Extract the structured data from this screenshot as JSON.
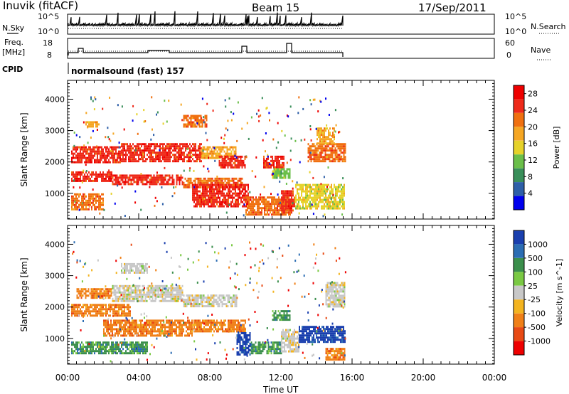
{
  "header": {
    "site": "Inuvik (fitACF)",
    "beam": "Beam 15",
    "date": "17/Sep/2011"
  },
  "strips": {
    "nsky_label": "N.Sky",
    "nsky_ticks": [
      "10^5",
      "10^0"
    ],
    "nsearch_label": "N.Search",
    "freq_label_1": "Freq.",
    "freq_label_2": "[MHz]",
    "freq_ticks": [
      "18",
      "8"
    ],
    "nave_label": "Nave",
    "nave_ticks": [
      "60",
      "0"
    ],
    "cpid_label": "CPID",
    "cpid_value": "normalsound (fast) 157"
  },
  "colors": {
    "power_scale": [
      "#0000ee",
      "#2e5fa8",
      "#3a8f5a",
      "#6bbf4a",
      "#e6d22a",
      "#f5a623",
      "#f07010",
      "#ee2a1a",
      "#ee0000"
    ],
    "velocity_scale": [
      "#1a3fae",
      "#2b6db3",
      "#3b8f4c",
      "#7ac943",
      "#c8c8c8",
      "#f3b420",
      "#f08018",
      "#e84a14",
      "#ee0000"
    ]
  },
  "chart_data": [
    {
      "type": "heatmap",
      "title": "Power",
      "xlabel": "Time UT",
      "ylabel": "Slant Range [km]",
      "x_ticks": [
        "00:00",
        "04:00",
        "08:00",
        "12:00",
        "16:00",
        "20:00",
        "00:00"
      ],
      "y_ticks": [
        "1000",
        "2000",
        "3000",
        "4000"
      ],
      "xlim_hours": [
        0,
        24
      ],
      "ylim_km": [
        180,
        4600
      ],
      "data_end_hour": 15.7,
      "colorbar": {
        "label": "Power [dB]",
        "ticks": [
          "4",
          "8",
          "12",
          "16",
          "20",
          "24",
          "28"
        ],
        "range": [
          0,
          30
        ]
      },
      "patches": [
        {
          "t0": 0.2,
          "t1": 2.5,
          "r0": 1400,
          "r1": 1700,
          "level": 28
        },
        {
          "t0": 2.5,
          "t1": 6.5,
          "r0": 1300,
          "r1": 1600,
          "level": 28
        },
        {
          "t0": 6.5,
          "t1": 9.8,
          "r0": 1200,
          "r1": 1500,
          "level": 24
        },
        {
          "t0": 0.2,
          "t1": 3.0,
          "r0": 2000,
          "r1": 2500,
          "level": 26
        },
        {
          "t0": 3.0,
          "t1": 7.5,
          "r0": 2000,
          "r1": 2600,
          "level": 28
        },
        {
          "t0": 7.5,
          "t1": 9.5,
          "r0": 2100,
          "r1": 2500,
          "level": 20
        },
        {
          "t0": 0.2,
          "t1": 2.0,
          "r0": 500,
          "r1": 1000,
          "level": 24
        },
        {
          "t0": 6.5,
          "t1": 7.8,
          "r0": 3100,
          "r1": 3500,
          "level": 24
        },
        {
          "t0": 7.0,
          "t1": 10.2,
          "r0": 600,
          "r1": 1300,
          "level": 28
        },
        {
          "t0": 8.5,
          "t1": 10.0,
          "r0": 1800,
          "r1": 2200,
          "level": 26
        },
        {
          "t0": 10.0,
          "t1": 12.5,
          "r0": 300,
          "r1": 900,
          "level": 24
        },
        {
          "t0": 11.0,
          "t1": 12.2,
          "r0": 1800,
          "r1": 2200,
          "level": 28
        },
        {
          "t0": 12.0,
          "t1": 12.8,
          "r0": 400,
          "r1": 1100,
          "level": 26
        },
        {
          "t0": 12.8,
          "t1": 15.6,
          "r0": 500,
          "r1": 1300,
          "level": 16
        },
        {
          "t0": 13.5,
          "t1": 15.6,
          "r0": 2000,
          "r1": 2600,
          "level": 22
        },
        {
          "t0": 14.0,
          "t1": 15.0,
          "r0": 2600,
          "r1": 3100,
          "level": 20
        },
        {
          "t0": 1.0,
          "t1": 1.8,
          "r0": 3100,
          "r1": 3300,
          "level": 18
        },
        {
          "t0": 11.5,
          "t1": 12.5,
          "r0": 1500,
          "r1": 1800,
          "level": 10
        }
      ]
    },
    {
      "type": "heatmap",
      "title": "Velocity",
      "xlabel": "Time UT",
      "ylabel": "Slant Range [km]",
      "x_ticks": [
        "00:00",
        "04:00",
        "08:00",
        "12:00",
        "16:00",
        "20:00",
        "00:00"
      ],
      "y_ticks": [
        "1000",
        "2000",
        "3000",
        "4000"
      ],
      "xlim_hours": [
        0,
        24
      ],
      "ylim_km": [
        180,
        4600
      ],
      "data_end_hour": 15.7,
      "colorbar": {
        "label": "Velocity [m s^-1]",
        "ticks": [
          "1000",
          "500",
          "100",
          "25",
          "-25",
          "-100",
          "-500",
          "-1000"
        ]
      },
      "patches": [
        {
          "t0": 0.2,
          "t1": 4.5,
          "r0": 500,
          "r1": 900,
          "level": 100
        },
        {
          "t0": 2.0,
          "t1": 7.0,
          "r0": 1100,
          "r1": 1600,
          "level": -100
        },
        {
          "t0": 7.0,
          "t1": 10.0,
          "r0": 1200,
          "r1": 1600,
          "level": -100
        },
        {
          "t0": 0.2,
          "t1": 3.5,
          "r0": 1700,
          "r1": 2100,
          "level": -100
        },
        {
          "t0": 0.5,
          "t1": 2.5,
          "r0": 2300,
          "r1": 2600,
          "level": -100
        },
        {
          "t0": 2.5,
          "t1": 6.5,
          "r0": 2200,
          "r1": 2700,
          "level": 0
        },
        {
          "t0": 6.5,
          "t1": 9.5,
          "r0": 2000,
          "r1": 2400,
          "level": 0
        },
        {
          "t0": 9.5,
          "t1": 10.3,
          "r0": 500,
          "r1": 1200,
          "level": 1000
        },
        {
          "t0": 10.3,
          "t1": 12.0,
          "r0": 500,
          "r1": 900,
          "level": 100
        },
        {
          "t0": 12.0,
          "t1": 13.0,
          "r0": 600,
          "r1": 1300,
          "level": 0
        },
        {
          "t0": 13.0,
          "t1": 15.6,
          "r0": 900,
          "r1": 1400,
          "level": 1000
        },
        {
          "t0": 14.5,
          "t1": 15.6,
          "r0": 2000,
          "r1": 2800,
          "level": 0
        },
        {
          "t0": 14.5,
          "t1": 15.6,
          "r0": 350,
          "r1": 700,
          "level": -100
        },
        {
          "t0": 11.5,
          "t1": 12.5,
          "r0": 1600,
          "r1": 1900,
          "level": 100
        },
        {
          "t0": 3.0,
          "t1": 4.5,
          "r0": 3100,
          "r1": 3400,
          "level": 0
        }
      ]
    }
  ]
}
